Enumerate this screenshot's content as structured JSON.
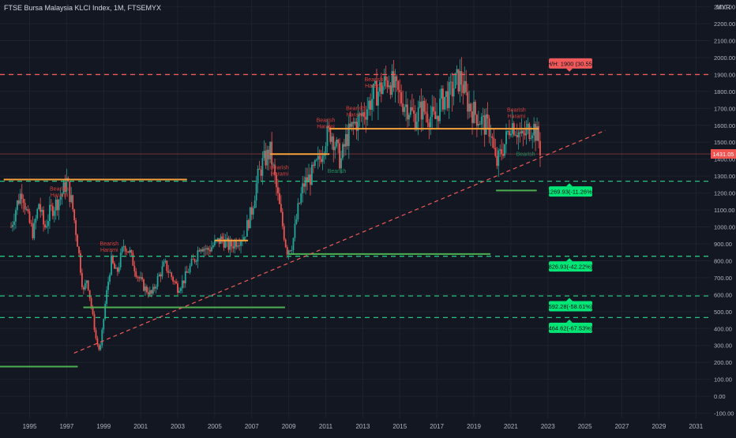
{
  "header": {
    "title": "FTSE Bursa Malaysia KLCI Index, 1M, FTSEMYX"
  },
  "colors": {
    "background": "#131722",
    "grid": "#1e222d",
    "axis_text": "#b2b5be",
    "candle_up": "#26a69a",
    "candle_down": "#ef5350",
    "resistance": "#f7a23b",
    "support": "#4caf50",
    "red_dashed": "#f05a5a",
    "green_dashed": "#26c281",
    "label_green": "#00e676",
    "label_red": "#f05a5a"
  },
  "chart_data": {
    "type": "candlestick",
    "currency_label": "MYR",
    "x_ticks": [
      "1995",
      "1997",
      "1999",
      "2001",
      "2003",
      "2005",
      "2007",
      "2009",
      "2011",
      "2013",
      "2015",
      "2017",
      "2019",
      "2021",
      "2023",
      "2025",
      "2027",
      "2029",
      "2031"
    ],
    "y_ticks": [
      "2300.00",
      "2200.00",
      "2100.00",
      "2000.00",
      "1900.00",
      "1800.00",
      "1700.00",
      "1600.00",
      "1500.00",
      "1400.00",
      "1300.00",
      "1200.00",
      "1100.00",
      "1000.00",
      "900.00",
      "800.00",
      "700.00",
      "600.00",
      "500.00",
      "400.00",
      "300.00",
      "200.00",
      "100.00",
      "0.00",
      "-100.00"
    ],
    "y_range": [
      -130,
      2340
    ],
    "x_range": [
      1993.4,
      2031.8
    ],
    "series_path": [
      [
        1994.0,
        1000
      ],
      [
        1994.3,
        1130
      ],
      [
        1994.6,
        1220
      ],
      [
        1994.9,
        1050
      ],
      [
        1995.2,
        960
      ],
      [
        1995.5,
        1140
      ],
      [
        1995.8,
        990
      ],
      [
        1996.1,
        1090
      ],
      [
        1996.5,
        1150
      ],
      [
        1996.8,
        1210
      ],
      [
        1997.0,
        1270
      ],
      [
        1997.3,
        1130
      ],
      [
        1997.6,
        900
      ],
      [
        1997.9,
        610
      ],
      [
        1998.1,
        700
      ],
      [
        1998.4,
        480
      ],
      [
        1998.6,
        330
      ],
      [
        1998.8,
        260
      ],
      [
        1999.1,
        560
      ],
      [
        1999.4,
        800
      ],
      [
        1999.7,
        720
      ],
      [
        2000.1,
        900
      ],
      [
        2000.4,
        850
      ],
      [
        2000.8,
        720
      ],
      [
        2001.2,
        640
      ],
      [
        2001.6,
        600
      ],
      [
        2001.9,
        690
      ],
      [
        2002.3,
        780
      ],
      [
        2002.7,
        700
      ],
      [
        2003.0,
        640
      ],
      [
        2003.3,
        680
      ],
      [
        2003.7,
        770
      ],
      [
        2004.0,
        830
      ],
      [
        2004.2,
        900
      ],
      [
        2004.6,
        860
      ],
      [
        2005.0,
        900
      ],
      [
        2005.4,
        930
      ],
      [
        2005.8,
        880
      ],
      [
        2006.2,
        920
      ],
      [
        2006.6,
        950
      ],
      [
        2007.0,
        1100
      ],
      [
        2007.3,
        1280
      ],
      [
        2007.6,
        1380
      ],
      [
        2008.0,
        1445
      ],
      [
        2008.3,
        1250
      ],
      [
        2008.6,
        1050
      ],
      [
        2008.9,
        860
      ],
      [
        2009.2,
        900
      ],
      [
        2009.5,
        1100
      ],
      [
        2009.8,
        1250
      ],
      [
        2010.2,
        1300
      ],
      [
        2010.6,
        1380
      ],
      [
        2011.0,
        1530
      ],
      [
        2011.3,
        1560
      ],
      [
        2011.6,
        1460
      ],
      [
        2011.8,
        1380
      ],
      [
        2012.1,
        1520
      ],
      [
        2012.5,
        1600
      ],
      [
        2012.9,
        1650
      ],
      [
        2013.2,
        1700
      ],
      [
        2013.6,
        1780
      ],
      [
        2014.0,
        1820
      ],
      [
        2014.4,
        1880
      ],
      [
        2014.8,
        1800
      ],
      [
        2015.1,
        1750
      ],
      [
        2015.5,
        1700
      ],
      [
        2015.8,
        1640
      ],
      [
        2016.2,
        1700
      ],
      [
        2016.6,
        1660
      ],
      [
        2016.9,
        1630
      ],
      [
        2017.3,
        1760
      ],
      [
        2017.7,
        1780
      ],
      [
        2018.0,
        1850
      ],
      [
        2018.3,
        1880
      ],
      [
        2018.6,
        1750
      ],
      [
        2018.9,
        1690
      ],
      [
        2019.3,
        1640
      ],
      [
        2019.6,
        1600
      ],
      [
        2019.9,
        1580
      ],
      [
        2020.2,
        1360
      ],
      [
        2020.4,
        1420
      ],
      [
        2020.7,
        1500
      ],
      [
        2021.0,
        1620
      ],
      [
        2021.3,
        1580
      ],
      [
        2021.6,
        1520
      ],
      [
        2021.9,
        1570
      ],
      [
        2022.2,
        1600
      ],
      [
        2022.5,
        1510
      ],
      [
        2022.6,
        1453
      ]
    ],
    "horizontal_levels": [
      {
        "name": "1900 level",
        "y": 1900,
        "style": "dashed",
        "color": "red"
      },
      {
        "name": "1269.93 level",
        "y": 1269.93,
        "style": "dashed",
        "color": "green"
      },
      {
        "name": "826.93 level",
        "y": 826.93,
        "style": "dashed",
        "color": "green"
      },
      {
        "name": "592.28 level",
        "y": 592.28,
        "style": "dashed",
        "color": "green"
      },
      {
        "name": "464.62 level",
        "y": 464.62,
        "style": "dashed",
        "color": "green"
      }
    ],
    "resistance_segments": [
      {
        "x1": 1993.6,
        "x2": 2003.5,
        "y": 1280
      },
      {
        "x1": 2005.0,
        "x2": 2006.8,
        "y": 920
      },
      {
        "x1": 2008.0,
        "x2": 2011.2,
        "y": 1430
      },
      {
        "x1": 2011.2,
        "x2": 2022.5,
        "y": 1580
      }
    ],
    "support_segments": [
      {
        "x1": 1993.4,
        "x2": 1997.6,
        "y": 175
      },
      {
        "x1": 1997.9,
        "x2": 2008.8,
        "y": 525
      },
      {
        "x1": 2009.0,
        "x2": 2019.9,
        "y": 840
      },
      {
        "x1": 2020.2,
        "x2": 2022.4,
        "y": 1215
      }
    ],
    "trendline": {
      "x1": 1997.4,
      "y1": 255,
      "x2": 2026.1,
      "y2": 1570
    },
    "annotations_bearish": [
      {
        "x": 1996.6,
        "y": 1215
      },
      {
        "x": 1999.3,
        "y": 890
      },
      {
        "x": 2008.5,
        "y": 1340
      },
      {
        "x": 2011.0,
        "y": 1620
      },
      {
        "x": 2012.6,
        "y": 1690
      },
      {
        "x": 2013.6,
        "y": 1860
      },
      {
        "x": 2021.3,
        "y": 1680
      }
    ],
    "annotations_bullish": [
      {
        "x": 2011.6,
        "y": 1320
      },
      {
        "x": 2021.8,
        "y": 1420
      }
    ],
    "price_labels": [
      {
        "text": "H/H: 1900 (30.55)",
        "y": 1900,
        "color": "red"
      },
      {
        "text": "1269.93(-11.26%)",
        "y": 1269.93,
        "color": "green"
      },
      {
        "text": "826.93(-42.22%)",
        "y": 826.93,
        "color": "green"
      },
      {
        "text": "592.28(-58.61%)",
        "y": 592.28,
        "color": "green"
      },
      {
        "text": "464.62(-67.53%)",
        "y": 464.62,
        "color": "green"
      }
    ],
    "current_price": "1431.05",
    "current_price_value": 1431.05,
    "annotation_words": {
      "bearish": "Bearish",
      "harami": "Harami"
    }
  }
}
